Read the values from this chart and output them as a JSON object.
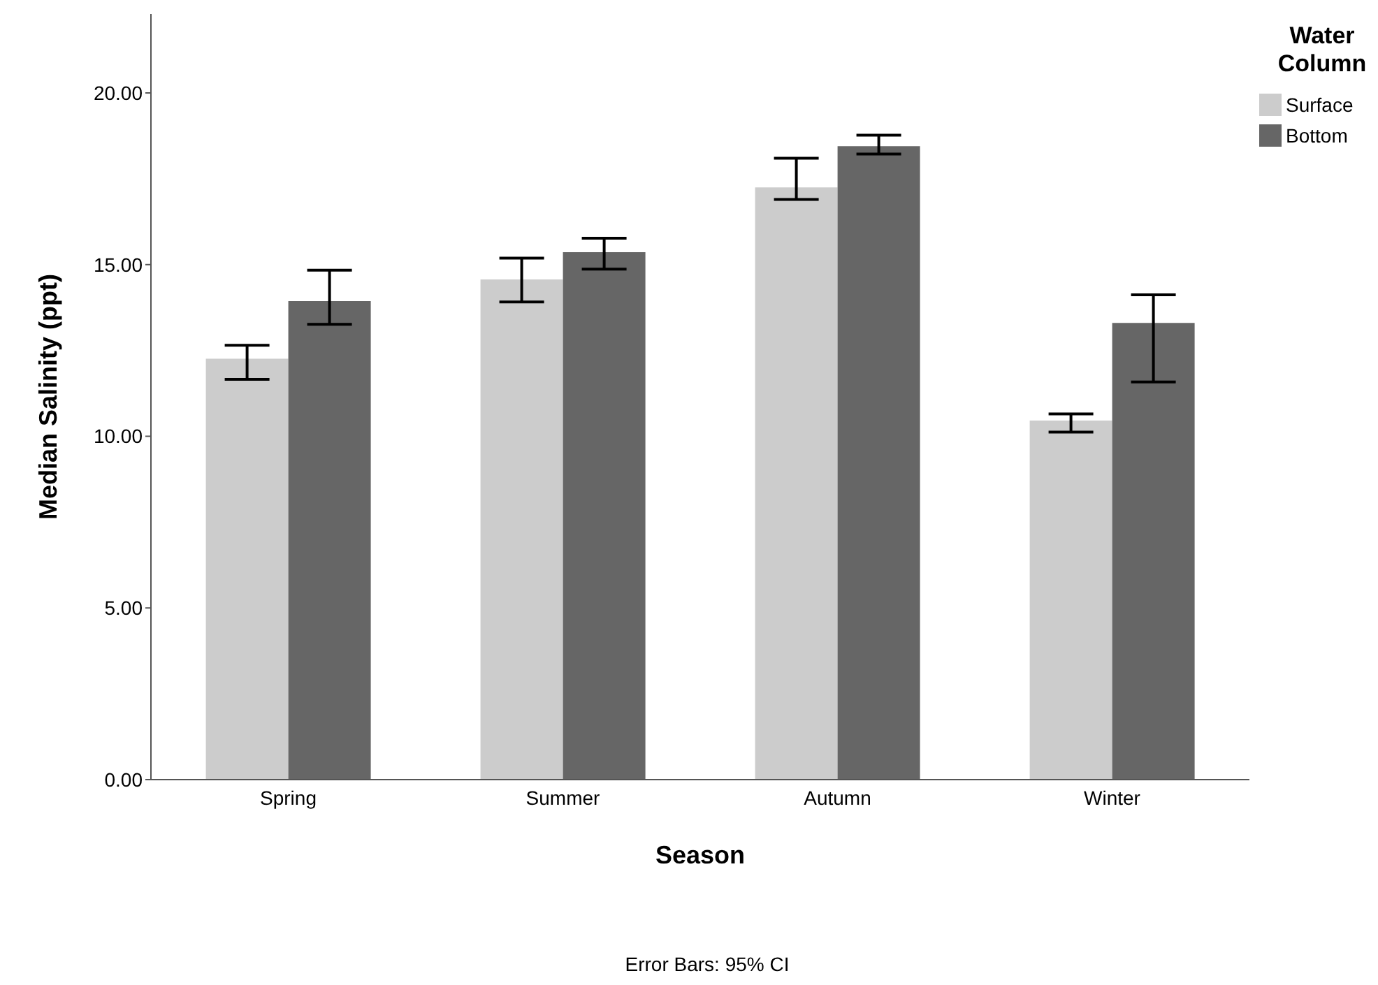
{
  "chart_data": {
    "type": "bar",
    "xlabel": "Season",
    "ylabel": "Median Salinity (ppt)",
    "legend_title": "Water Column",
    "annotations": [
      "Error Bars: 95% CI"
    ],
    "categories": [
      "Spring",
      "Summer",
      "Autumn",
      "Winter"
    ],
    "series": [
      {
        "name": "Surface",
        "color": "#cccccc",
        "values": [
          12.26,
          14.57,
          17.25,
          10.46
        ],
        "errors": [
          [
            11.66,
            12.65
          ],
          [
            13.91,
            15.19
          ],
          [
            16.9,
            18.1
          ],
          [
            10.12,
            10.65
          ]
        ]
      },
      {
        "name": "Bottom",
        "color": "#666666",
        "values": [
          13.94,
          15.36,
          18.45,
          13.3
        ],
        "errors": [
          [
            13.26,
            14.84
          ],
          [
            14.87,
            15.77
          ],
          [
            18.22,
            18.77
          ],
          [
            11.58,
            14.12
          ]
        ]
      }
    ],
    "ylim": [
      0,
      22.3
    ],
    "yticks": [
      {
        "value": 0,
        "label": "0.00"
      },
      {
        "value": 5,
        "label": "5.00"
      },
      {
        "value": 10,
        "label": "10.00"
      },
      {
        "value": 15,
        "label": "15.00"
      },
      {
        "value": 20,
        "label": "20.00"
      }
    ],
    "grid": false,
    "legend": "top right"
  }
}
